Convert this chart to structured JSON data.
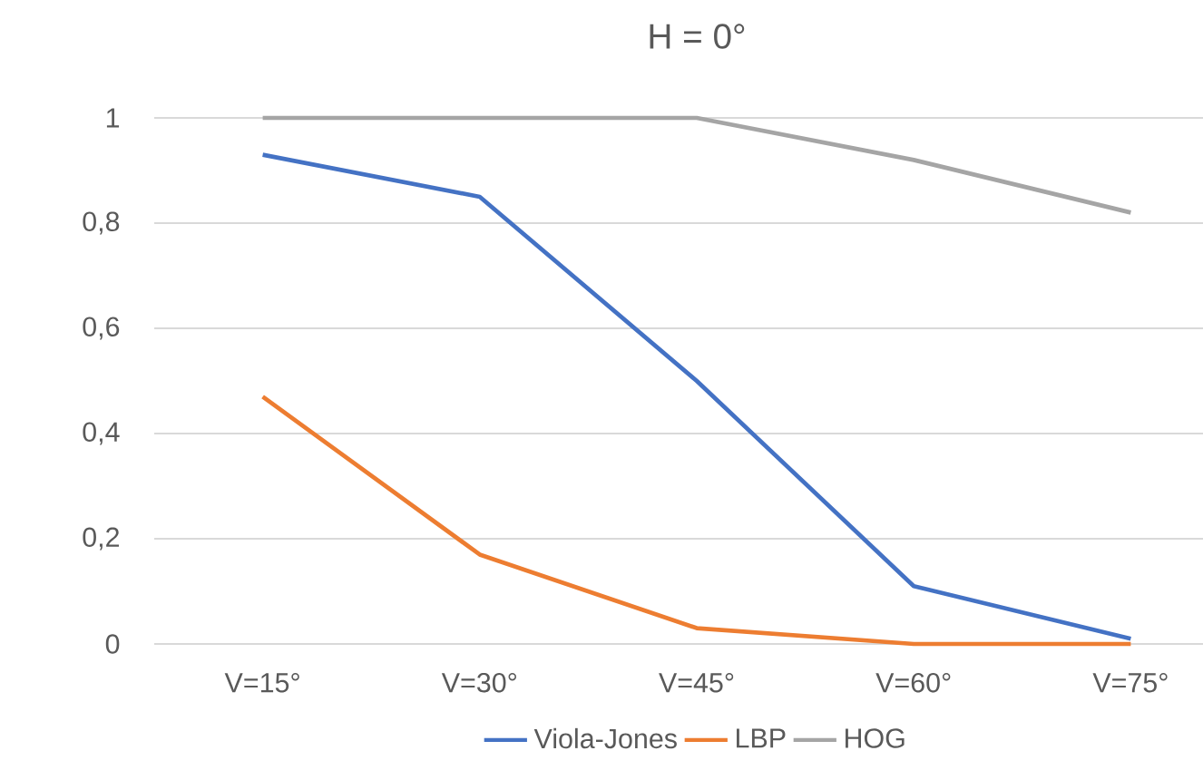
{
  "chart_data": {
    "type": "line",
    "title": "H = 0°",
    "categories": [
      "V=15°",
      "V=30°",
      "V=45°",
      "V=60°",
      "V=75°"
    ],
    "series": [
      {
        "name": "Viola-Jones",
        "color": "#4472c4",
        "values": [
          0.93,
          0.85,
          0.5,
          0.11,
          0.01
        ]
      },
      {
        "name": "LBP",
        "color": "#ed7d31",
        "values": [
          0.47,
          0.17,
          0.03,
          0,
          0
        ]
      },
      {
        "name": "HOG",
        "color": "#a5a5a5",
        "values": [
          1,
          1,
          1,
          0.92,
          0.82
        ]
      }
    ],
    "ylim": [
      0,
      1
    ],
    "yticks": [
      {
        "value": 0,
        "label": "0"
      },
      {
        "value": 0.2,
        "label": "0,2"
      },
      {
        "value": 0.4,
        "label": "0,4"
      },
      {
        "value": 0.6,
        "label": "0,6"
      },
      {
        "value": 0.8,
        "label": "0,8"
      },
      {
        "value": 1,
        "label": "1"
      }
    ],
    "grid": "y",
    "legend": "bottom",
    "marker": "none",
    "line_style": "solid"
  }
}
